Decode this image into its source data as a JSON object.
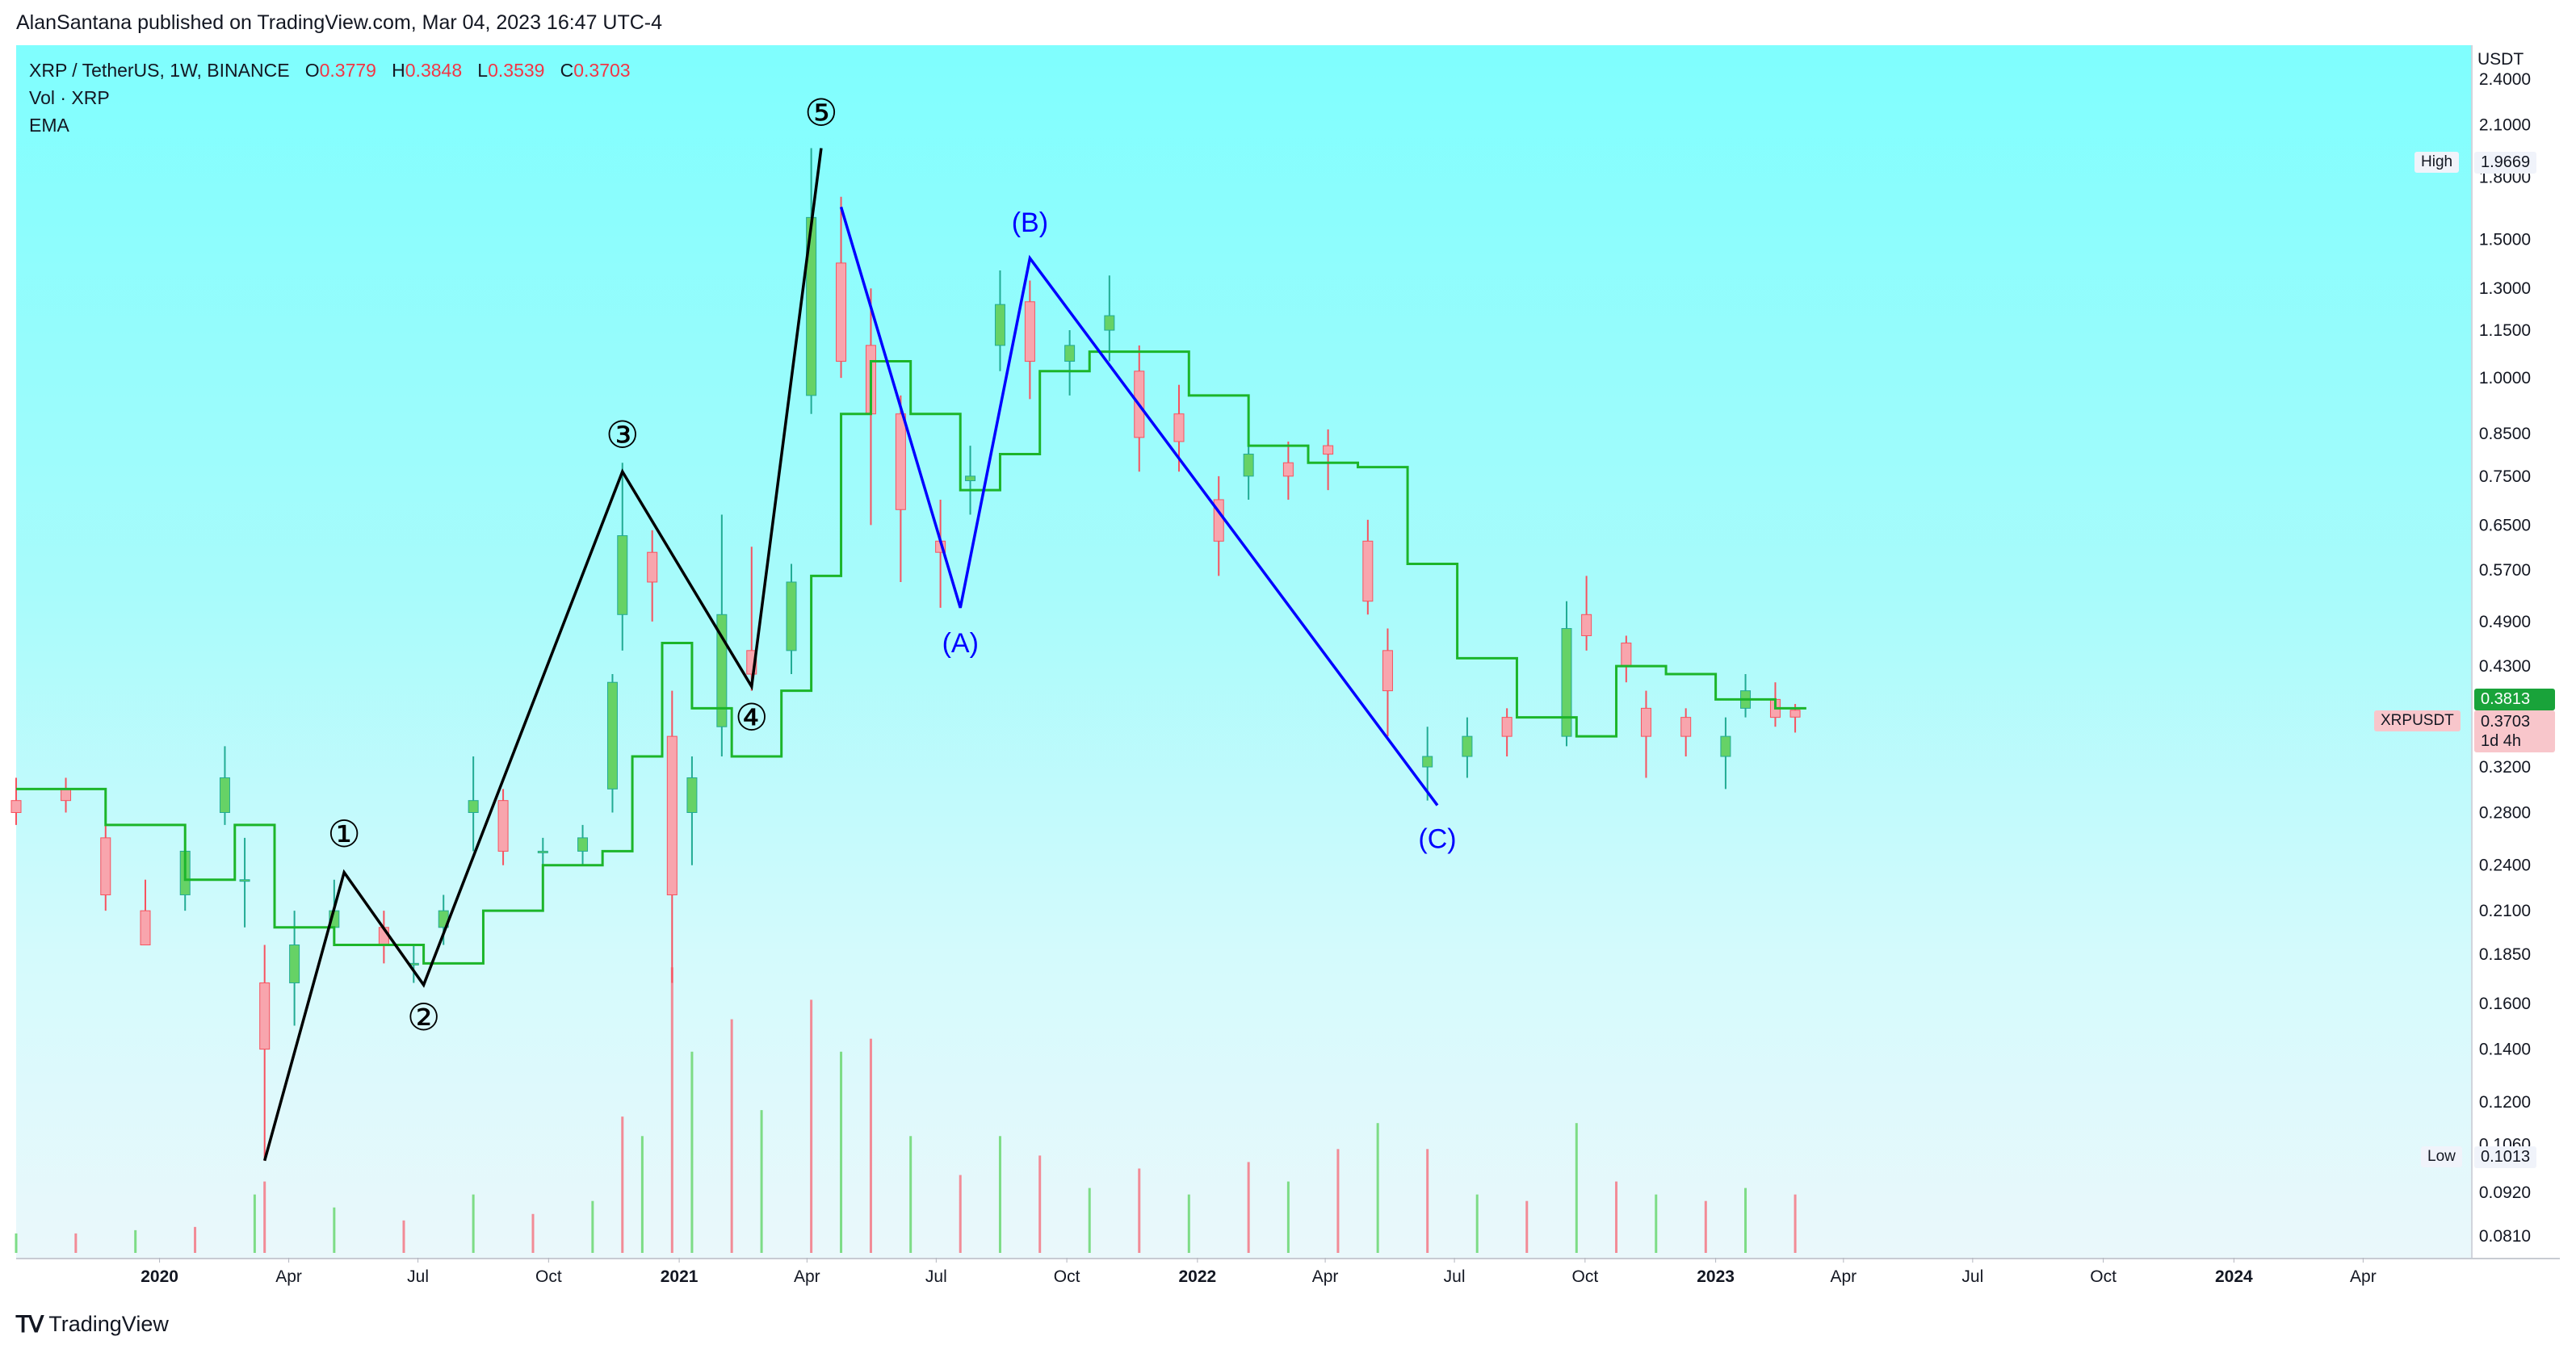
{
  "header": {
    "publisher": "AlanSantana published on TradingView.com, Mar 04, 2023 16:47 UTC-4"
  },
  "legend": {
    "symbol": "XRP / TetherUS, 1W, BINANCE",
    "o_key": "O",
    "o_val": "0.3779",
    "h_key": "H",
    "h_val": "0.3848",
    "l_key": "L",
    "l_val": "0.3539",
    "c_key": "C",
    "c_val": "0.3703",
    "volume": "Vol · XRP",
    "ema": "EMA"
  },
  "price_axis": {
    "currency": "USDT",
    "ticks": [
      "2.4000",
      "2.1000",
      "1.8000",
      "1.5000",
      "1.3000",
      "1.1500",
      "1.0000",
      "0.8500",
      "0.7500",
      "0.6500",
      "0.5700",
      "0.4900",
      "0.4300",
      "0.3200",
      "0.2800",
      "0.2400",
      "0.2100",
      "0.1850",
      "0.1600",
      "0.1400",
      "0.1200",
      "0.1060",
      "0.0920",
      "0.0810"
    ],
    "high_label": "High",
    "high_value": "1.9669",
    "low_label": "Low",
    "low_value": "0.1013",
    "ema_value": "0.3813",
    "symbol_tag": "XRPUSDT",
    "last_value": "0.3703",
    "countdown": "1d 4h"
  },
  "time_axis": {
    "ticks": [
      {
        "label": "2020",
        "year": true
      },
      {
        "label": "Apr",
        "year": false
      },
      {
        "label": "Jul",
        "year": false
      },
      {
        "label": "Oct",
        "year": false
      },
      {
        "label": "2021",
        "year": true
      },
      {
        "label": "Apr",
        "year": false
      },
      {
        "label": "Jul",
        "year": false
      },
      {
        "label": "Oct",
        "year": false
      },
      {
        "label": "2022",
        "year": true
      },
      {
        "label": "Apr",
        "year": false
      },
      {
        "label": "Jul",
        "year": false
      },
      {
        "label": "Oct",
        "year": false
      },
      {
        "label": "2023",
        "year": true
      },
      {
        "label": "Apr",
        "year": false
      },
      {
        "label": "Jul",
        "year": false
      },
      {
        "label": "Oct",
        "year": false
      },
      {
        "label": "2024",
        "year": true
      },
      {
        "label": "Apr",
        "year": false
      }
    ]
  },
  "chart_data": {
    "type": "candlestick",
    "title": "XRP / TetherUS, 1W, BINANCE",
    "ylabel": "USDT",
    "yscale": "log",
    "ylim": [
      0.076,
      2.65
    ],
    "xlim": [
      "2019-09-22",
      "2024-06-16"
    ],
    "colors": {
      "up": "#22ab94",
      "up_fill": "#66d266",
      "down": "#f7525f",
      "down_fill": "#f8a5ad",
      "ema": "#1cb52a",
      "impulse": "#000000",
      "correction": "#0000ff"
    },
    "candles": [
      [
        "2019-09-22",
        0.29,
        0.31,
        0.27,
        0.28
      ],
      [
        "2019-10-27",
        0.3,
        0.31,
        0.28,
        0.29
      ],
      [
        "2019-11-24",
        0.26,
        0.28,
        0.21,
        0.22
      ],
      [
        "2019-12-22",
        0.21,
        0.23,
        0.19,
        0.19
      ],
      [
        "2020-01-19",
        0.22,
        0.26,
        0.21,
        0.25
      ],
      [
        "2020-02-16",
        0.28,
        0.34,
        0.27,
        0.31
      ],
      [
        "2020-03-01",
        0.23,
        0.26,
        0.2,
        0.23
      ],
      [
        "2020-03-15",
        0.17,
        0.19,
        0.101,
        0.14
      ],
      [
        "2020-04-05",
        0.17,
        0.21,
        0.15,
        0.19
      ],
      [
        "2020-05-03",
        0.2,
        0.23,
        0.19,
        0.21
      ],
      [
        "2020-06-07",
        0.2,
        0.21,
        0.18,
        0.19
      ],
      [
        "2020-06-28",
        0.18,
        0.19,
        0.17,
        0.18
      ],
      [
        "2020-07-19",
        0.2,
        0.22,
        0.19,
        0.21
      ],
      [
        "2020-08-09",
        0.28,
        0.33,
        0.25,
        0.29
      ],
      [
        "2020-08-30",
        0.29,
        0.3,
        0.24,
        0.25
      ],
      [
        "2020-09-27",
        0.25,
        0.26,
        0.23,
        0.25
      ],
      [
        "2020-10-25",
        0.25,
        0.27,
        0.24,
        0.26
      ],
      [
        "2020-11-15",
        0.3,
        0.42,
        0.28,
        0.41
      ],
      [
        "2020-11-22",
        0.5,
        0.78,
        0.45,
        0.63
      ],
      [
        "2020-12-13",
        0.6,
        0.64,
        0.49,
        0.55
      ],
      [
        "2020-12-27",
        0.35,
        0.4,
        0.17,
        0.22
      ],
      [
        "2021-01-10",
        0.28,
        0.33,
        0.24,
        0.31
      ],
      [
        "2021-01-31",
        0.36,
        0.67,
        0.33,
        0.5
      ],
      [
        "2021-02-21",
        0.45,
        0.61,
        0.4,
        0.42
      ],
      [
        "2021-03-21",
        0.45,
        0.58,
        0.42,
        0.55
      ],
      [
        "2021-04-04",
        0.95,
        1.96,
        0.9,
        1.6
      ],
      [
        "2021-04-25",
        1.4,
        1.7,
        1.0,
        1.05
      ],
      [
        "2021-05-16",
        1.1,
        1.3,
        0.65,
        0.9
      ],
      [
        "2021-06-06",
        0.9,
        0.95,
        0.55,
        0.68
      ],
      [
        "2021-07-04",
        0.62,
        0.7,
        0.51,
        0.6
      ],
      [
        "2021-07-25",
        0.74,
        0.82,
        0.67,
        0.75
      ],
      [
        "2021-08-15",
        1.1,
        1.37,
        1.02,
        1.24
      ],
      [
        "2021-09-05",
        1.25,
        1.33,
        0.94,
        1.05
      ],
      [
        "2021-10-03",
        1.05,
        1.15,
        0.95,
        1.1
      ],
      [
        "2021-10-31",
        1.15,
        1.35,
        1.05,
        1.2
      ],
      [
        "2021-11-21",
        1.02,
        1.1,
        0.76,
        0.84
      ],
      [
        "2021-12-19",
        0.9,
        0.98,
        0.76,
        0.83
      ],
      [
        "2022-01-16",
        0.7,
        0.75,
        0.56,
        0.62
      ],
      [
        "2022-02-06",
        0.75,
        0.91,
        0.7,
        0.8
      ],
      [
        "2022-03-06",
        0.78,
        0.83,
        0.7,
        0.75
      ],
      [
        "2022-04-03",
        0.82,
        0.86,
        0.72,
        0.8
      ],
      [
        "2022-05-01",
        0.62,
        0.66,
        0.5,
        0.52
      ],
      [
        "2022-05-15",
        0.45,
        0.48,
        0.35,
        0.4
      ],
      [
        "2022-06-12",
        0.32,
        0.36,
        0.29,
        0.33
      ],
      [
        "2022-07-10",
        0.33,
        0.37,
        0.31,
        0.35
      ],
      [
        "2022-08-07",
        0.37,
        0.38,
        0.33,
        0.35
      ],
      [
        "2022-09-18",
        0.35,
        0.52,
        0.34,
        0.48
      ],
      [
        "2022-10-02",
        0.5,
        0.56,
        0.45,
        0.47
      ],
      [
        "2022-10-30",
        0.46,
        0.47,
        0.41,
        0.43
      ],
      [
        "2022-11-13",
        0.38,
        0.4,
        0.31,
        0.35
      ],
      [
        "2022-12-11",
        0.37,
        0.38,
        0.33,
        0.35
      ],
      [
        "2023-01-08",
        0.33,
        0.37,
        0.3,
        0.35
      ],
      [
        "2023-01-22",
        0.38,
        0.42,
        0.37,
        0.4
      ],
      [
        "2023-02-12",
        0.39,
        0.41,
        0.36,
        0.37
      ],
      [
        "2023-02-26",
        0.3779,
        0.3848,
        0.3539,
        0.3703
      ]
    ],
    "ema": [
      [
        "2019-09-22",
        0.3
      ],
      [
        "2019-11-24",
        0.27
      ],
      [
        "2020-01-19",
        0.23
      ],
      [
        "2020-02-23",
        0.27
      ],
      [
        "2020-03-22",
        0.2
      ],
      [
        "2020-05-03",
        0.19
      ],
      [
        "2020-07-05",
        0.18
      ],
      [
        "2020-08-16",
        0.21
      ],
      [
        "2020-09-27",
        0.24
      ],
      [
        "2020-11-08",
        0.25
      ],
      [
        "2020-11-29",
        0.33
      ],
      [
        "2020-12-20",
        0.46
      ],
      [
        "2021-01-10",
        0.38
      ],
      [
        "2021-02-07",
        0.33
      ],
      [
        "2021-03-14",
        0.4
      ],
      [
        "2021-04-04",
        0.56
      ],
      [
        "2021-04-25",
        0.9
      ],
      [
        "2021-05-16",
        1.05
      ],
      [
        "2021-06-13",
        0.9
      ],
      [
        "2021-07-18",
        0.72
      ],
      [
        "2021-08-15",
        0.8
      ],
      [
        "2021-09-12",
        1.02
      ],
      [
        "2021-10-17",
        1.08
      ],
      [
        "2021-11-21",
        1.08
      ],
      [
        "2021-12-26",
        0.95
      ],
      [
        "2022-02-06",
        0.82
      ],
      [
        "2022-03-20",
        0.78
      ],
      [
        "2022-04-24",
        0.77
      ],
      [
        "2022-05-29",
        0.58
      ],
      [
        "2022-07-03",
        0.44
      ],
      [
        "2022-08-14",
        0.37
      ],
      [
        "2022-09-25",
        0.35
      ],
      [
        "2022-10-23",
        0.43
      ],
      [
        "2022-11-27",
        0.42
      ],
      [
        "2023-01-01",
        0.39
      ],
      [
        "2023-02-12",
        0.38
      ],
      [
        "2023-03-05",
        0.3813
      ]
    ],
    "volume": {
      "ylim": [
        0,
        5
      ],
      "bars": [
        [
          "2019-09-22",
          0.3
        ],
        [
          "2019-11-03",
          0.3
        ],
        [
          "2019-12-15",
          0.35
        ],
        [
          "2020-01-26",
          0.4
        ],
        [
          "2020-03-08",
          0.9
        ],
        [
          "2020-03-15",
          1.1
        ],
        [
          "2020-05-03",
          0.7
        ],
        [
          "2020-06-21",
          0.5
        ],
        [
          "2020-08-09",
          0.9
        ],
        [
          "2020-09-20",
          0.6
        ],
        [
          "2020-11-01",
          0.8
        ],
        [
          "2020-11-22",
          2.1
        ],
        [
          "2020-12-06",
          1.8
        ],
        [
          "2020-12-27",
          4.4
        ],
        [
          "2021-01-10",
          3.1
        ],
        [
          "2021-02-07",
          3.6
        ],
        [
          "2021-02-28",
          2.2
        ],
        [
          "2021-04-04",
          3.9
        ],
        [
          "2021-04-25",
          3.1
        ],
        [
          "2021-05-16",
          3.3
        ],
        [
          "2021-06-13",
          1.8
        ],
        [
          "2021-07-18",
          1.2
        ],
        [
          "2021-08-15",
          1.8
        ],
        [
          "2021-09-12",
          1.5
        ],
        [
          "2021-10-17",
          1.0
        ],
        [
          "2021-11-21",
          1.3
        ],
        [
          "2021-12-26",
          0.9
        ],
        [
          "2022-02-06",
          1.4
        ],
        [
          "2022-03-06",
          1.1
        ],
        [
          "2022-04-10",
          1.6
        ],
        [
          "2022-05-08",
          2.0
        ],
        [
          "2022-06-12",
          1.6
        ],
        [
          "2022-07-17",
          0.9
        ],
        [
          "2022-08-21",
          0.8
        ],
        [
          "2022-09-25",
          2.0
        ],
        [
          "2022-10-23",
          1.1
        ],
        [
          "2022-11-20",
          0.9
        ],
        [
          "2022-12-25",
          0.8
        ],
        [
          "2023-01-22",
          1.0
        ],
        [
          "2023-02-26",
          0.9
        ]
      ]
    },
    "elliott_impulse": [
      {
        "label": "",
        "date": "2020-03-15",
        "price": 0.101
      },
      {
        "label": "①",
        "date": "2020-05-10",
        "price": 0.235
      },
      {
        "label": "②",
        "date": "2020-07-05",
        "price": 0.169
      },
      {
        "label": "③",
        "date": "2020-11-22",
        "price": 0.76
      },
      {
        "label": "④",
        "date": "2021-02-21",
        "price": 0.405
      },
      {
        "label": "⑤",
        "date": "2021-04-11",
        "price": 1.96
      }
    ],
    "elliott_correction": [
      {
        "label": "",
        "date": "2021-04-25",
        "price": 1.65
      },
      {
        "label": "(A)",
        "date": "2021-07-18",
        "price": 0.51
      },
      {
        "label": "(B)",
        "date": "2021-09-05",
        "price": 1.42
      },
      {
        "label": "(C)",
        "date": "2022-06-19",
        "price": 0.286
      }
    ]
  }
}
